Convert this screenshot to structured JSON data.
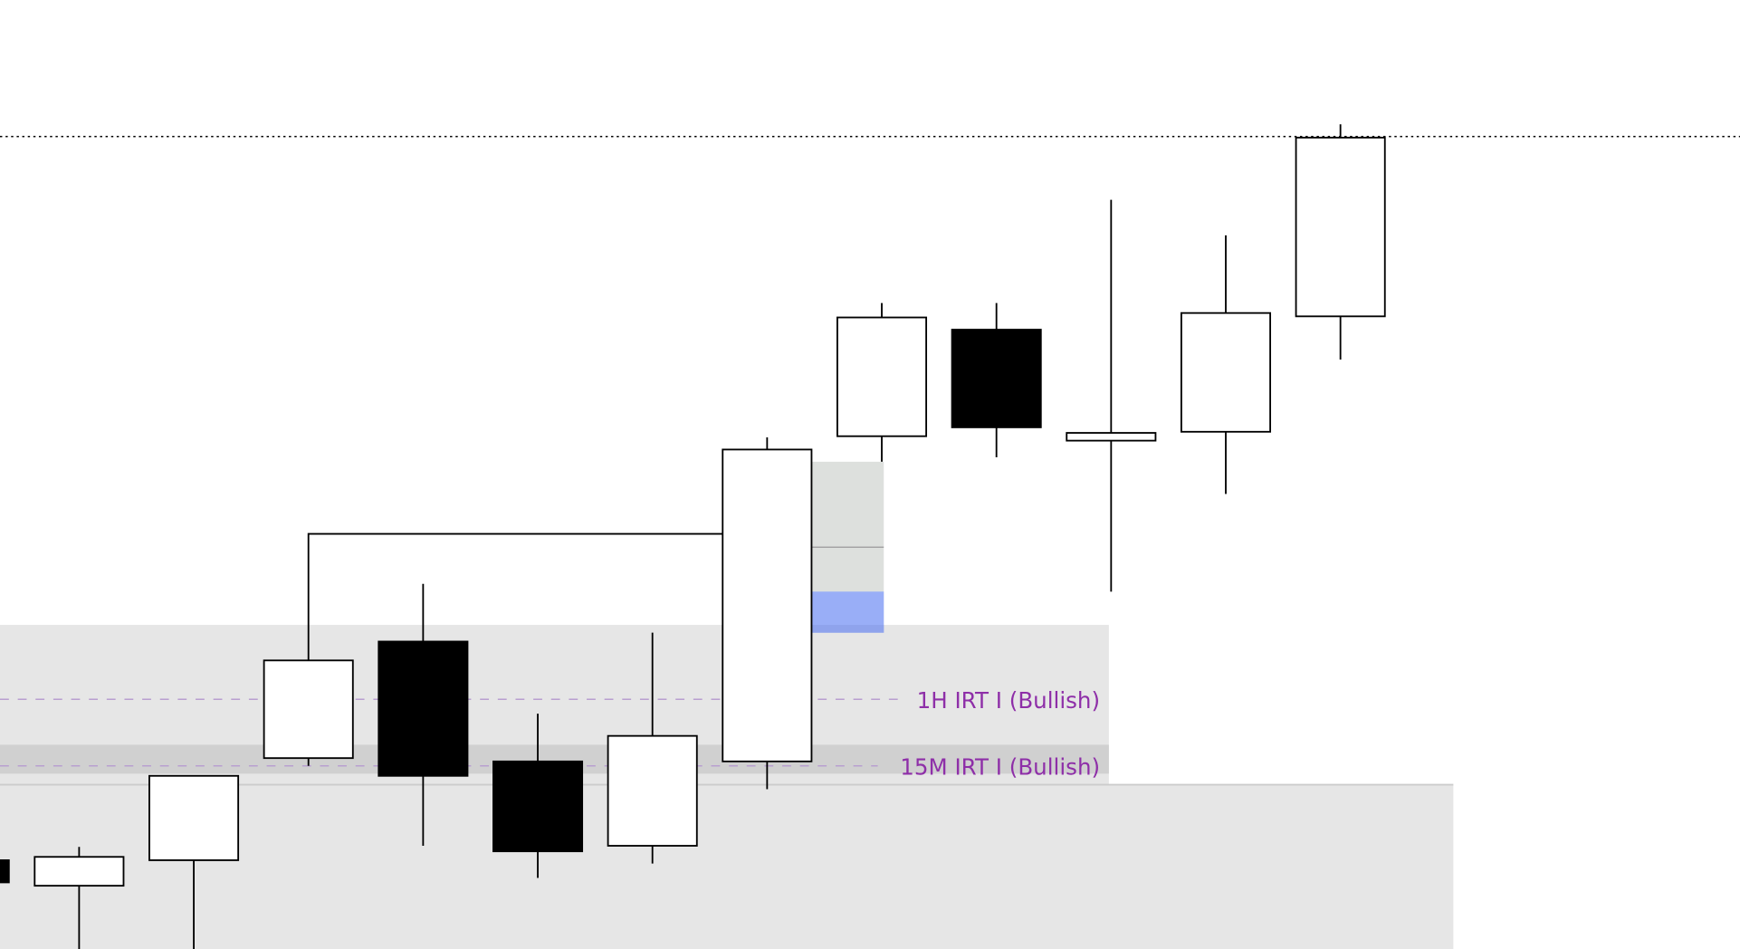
{
  "chart_data": {
    "type": "candlestick",
    "price_units": "relative (no axis printed)",
    "colors": {
      "bullish_fill": "#ffffff",
      "bearish_fill": "#000000",
      "outline": "#000000",
      "zone": "#e6e6e6",
      "zone_band": "#d0d0d0",
      "imbalance_box": "#dde0dd",
      "imbalance_fill": "#99aef7",
      "label": "#8e2fa8",
      "label_line": "#b99fd0"
    },
    "candles": [
      {
        "open": 8.0,
        "high": 8.0,
        "low": 6.0,
        "close": 6.0
      },
      {
        "open": 5.7,
        "high": 9.2,
        "low": -1.5,
        "close": 8.3
      },
      {
        "open": 8.0,
        "high": 15.6,
        "low": -1.5,
        "close": 15.6
      },
      {
        "open": 17.2,
        "high": 26.0,
        "low": 16.5,
        "close": 26.0
      },
      {
        "open": 27.7,
        "high": 32.9,
        "low": 9.3,
        "close": 15.6
      },
      {
        "open": 16.9,
        "high": 21.2,
        "low": 6.4,
        "close": 8.8
      },
      {
        "open": 9.3,
        "high": 28.5,
        "low": 7.7,
        "close": 19.2
      },
      {
        "open": 16.9,
        "high": 46.1,
        "low": 14.4,
        "close": 45.0
      },
      {
        "open": 46.2,
        "high": 58.2,
        "low": 43.9,
        "close": 56.9
      },
      {
        "open": 55.8,
        "high": 58.2,
        "low": 44.3,
        "close": 47.0
      },
      {
        "open": 45.8,
        "high": 67.5,
        "low": 32.2,
        "close": 46.5
      },
      {
        "open": 46.6,
        "high": 64.3,
        "low": 41.0,
        "close": 57.3
      },
      {
        "open": 57.0,
        "high": 74.3,
        "low": 53.1,
        "close": 73.1
      }
    ],
    "dotted_level": 73.2,
    "bracket_level": 37.4,
    "zones": [
      {
        "from": 14.7,
        "to": 29.2
      },
      {
        "from": 15.8,
        "to": 18.4,
        "band": true
      },
      {
        "from": -1.5,
        "to": 14.8
      }
    ],
    "imbalance": {
      "from": 28.5,
      "to": 43.9,
      "mid": 36.2,
      "filled_from": 28.5,
      "filled_to": 32.2
    },
    "levels": [
      {
        "price": 22.5,
        "label": "1H IRT I (Bullish)"
      },
      {
        "price": 16.5,
        "label": "15M IRT I (Bullish)"
      }
    ]
  }
}
